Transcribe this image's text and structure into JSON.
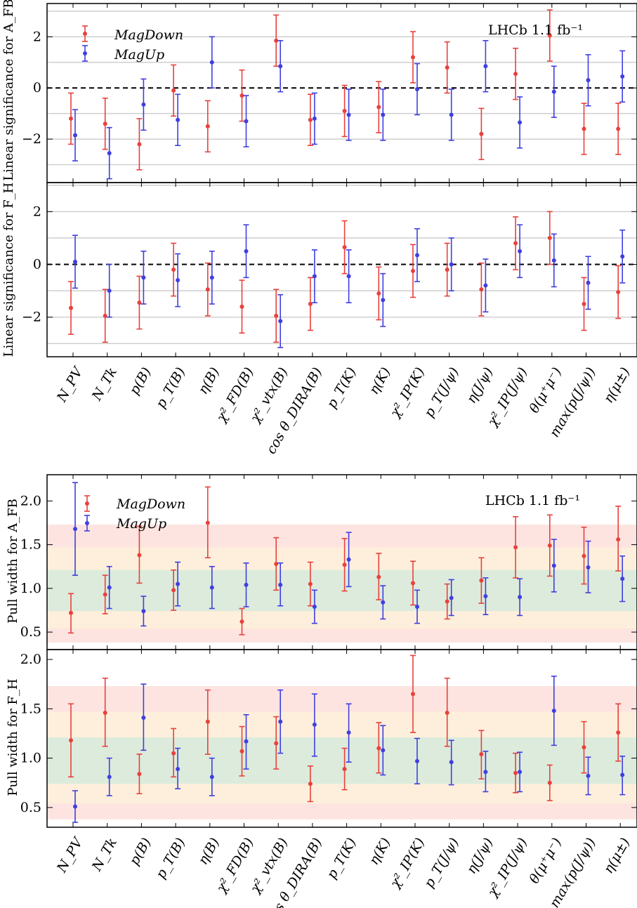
{
  "categories": [
    "N_PV",
    "N_Tk",
    "p(B)",
    "p_T(B)",
    "η(B)",
    "χ²_FD(B)",
    "χ²_vtx(B)",
    "cos θ_DIRA(B)",
    "p_T(K)",
    "η(K)",
    "χ²_IP(K)",
    "p_T(J/ψ)",
    "η(J/ψ)",
    "χ²_IP(J/ψ)",
    "θ(μ⁺μ⁻)",
    "max(p(J/ψ))",
    "η(μ±)"
  ],
  "colors": {
    "magdown": "#e8413c",
    "magup": "#3f3fe0",
    "green_band": "#dcebdc",
    "yellow_band": "#fdefdb",
    "red_band": "#fde4e1"
  },
  "chart_data": [
    {
      "type": "scatter",
      "ylabel": "Linear significance for A_FB",
      "annotation": "LHCb 1.1 fb⁻¹",
      "ylim": [
        -3.7,
        3.3
      ],
      "yticks": [
        -2,
        0,
        2
      ],
      "gridlines": [
        -3,
        -2,
        -1,
        1,
        2,
        3
      ],
      "reference_line": 0,
      "series": [
        {
          "name": "MagDown",
          "values": [
            -1.2,
            -1.4,
            -2.2,
            -0.1,
            -1.5,
            -0.3,
            1.85,
            -1.25,
            -0.9,
            -0.75,
            1.2,
            0.8,
            -1.8,
            0.55,
            2.05,
            -1.6,
            -1.6
          ],
          "errors": [
            1.0,
            1.0,
            1.0,
            1.0,
            1.0,
            1.0,
            1.0,
            1.0,
            1.0,
            1.0,
            1.0,
            1.0,
            1.0,
            1.0,
            1.0,
            1.0,
            1.0
          ]
        },
        {
          "name": "MagUp",
          "values": [
            -1.85,
            -2.55,
            -0.65,
            -1.25,
            1.0,
            -1.3,
            0.85,
            -1.2,
            -1.05,
            -1.05,
            -0.05,
            -1.05,
            0.85,
            -1.35,
            -0.15,
            0.3,
            0.45
          ],
          "errors": [
            1.0,
            1.0,
            1.0,
            1.0,
            1.0,
            1.0,
            1.0,
            1.0,
            1.0,
            1.0,
            1.0,
            1.0,
            1.0,
            1.0,
            1.0,
            1.0,
            1.0
          ]
        }
      ]
    },
    {
      "type": "scatter",
      "ylabel": "Linear significance for F_H",
      "ylim": [
        -3.5,
        3.1
      ],
      "yticks": [
        -2,
        0,
        2
      ],
      "gridlines": [
        -3,
        -2,
        -1,
        1,
        2,
        3
      ],
      "reference_line": 0,
      "series": [
        {
          "name": "MagDown",
          "values": [
            -1.65,
            -1.95,
            -1.45,
            -0.2,
            -0.95,
            -1.6,
            -1.95,
            -1.5,
            0.65,
            -1.1,
            -0.25,
            -0.2,
            -0.95,
            0.8,
            1.0,
            -1.5,
            -1.05
          ],
          "errors": [
            1.0,
            1.0,
            1.0,
            1.0,
            1.0,
            1.0,
            1.0,
            1.0,
            1.0,
            1.0,
            1.0,
            1.0,
            1.0,
            1.0,
            1.0,
            1.0,
            1.0
          ]
        },
        {
          "name": "MagUp",
          "values": [
            0.1,
            -1.0,
            -0.5,
            -0.6,
            -0.5,
            0.5,
            -2.15,
            -0.45,
            -0.45,
            -1.35,
            0.35,
            0.0,
            -0.8,
            0.5,
            0.15,
            -0.7,
            0.3
          ],
          "errors": [
            1.0,
            1.0,
            1.0,
            1.0,
            1.0,
            1.0,
            1.0,
            1.0,
            1.0,
            1.0,
            1.0,
            1.0,
            1.0,
            1.0,
            1.0,
            1.0,
            1.0
          ]
        }
      ]
    },
    {
      "type": "scatter",
      "ylabel": "Pull width for A_FB",
      "annotation": "LHCb  1.1 fb⁻¹",
      "ylim": [
        0.3,
        2.3
      ],
      "yticks": [
        0.5,
        1.0,
        1.5,
        2.0
      ],
      "bands": [
        [
          0.38,
          1.73
        ],
        [
          0.54,
          1.47
        ],
        [
          0.74,
          1.21
        ]
      ],
      "series": [
        {
          "name": "MagDown",
          "values": [
            0.72,
            0.93,
            1.38,
            0.98,
            1.75,
            0.62,
            1.28,
            1.05,
            1.27,
            1.13,
            1.06,
            0.85,
            1.09,
            1.47,
            1.49,
            1.37,
            1.56
          ],
          "lower": [
            0.49,
            0.71,
            1.06,
            0.75,
            1.35,
            0.47,
            0.98,
            0.8,
            0.97,
            0.87,
            0.81,
            0.65,
            0.83,
            1.12,
            1.14,
            1.05,
            1.2
          ],
          "upper": [
            0.94,
            1.15,
            1.71,
            1.21,
            2.16,
            0.77,
            1.58,
            1.3,
            1.57,
            1.4,
            1.31,
            1.05,
            1.35,
            1.82,
            1.84,
            1.7,
            1.94
          ]
        },
        {
          "name": "MagUp",
          "values": [
            1.68,
            1.01,
            0.74,
            1.05,
            1.01,
            1.04,
            1.04,
            0.79,
            1.33,
            0.84,
            0.79,
            0.89,
            0.91,
            0.9,
            1.26,
            1.24,
            1.11
          ],
          "lower": [
            1.15,
            0.77,
            0.57,
            0.8,
            0.77,
            0.79,
            0.8,
            0.6,
            1.02,
            0.65,
            0.6,
            0.69,
            0.7,
            0.69,
            0.96,
            0.95,
            0.85
          ],
          "upper": [
            2.21,
            1.25,
            0.91,
            1.3,
            1.25,
            1.29,
            1.29,
            0.98,
            1.64,
            1.03,
            0.98,
            1.1,
            1.12,
            1.11,
            1.56,
            1.54,
            1.37
          ]
        }
      ]
    },
    {
      "type": "scatter",
      "ylabel": "Pull width for F_H",
      "ylim": [
        0.3,
        2.1
      ],
      "yticks": [
        0.5,
        1.0,
        1.5,
        2.0
      ],
      "bands": [
        [
          0.38,
          1.73
        ],
        [
          0.54,
          1.47
        ],
        [
          0.74,
          1.21
        ]
      ],
      "series": [
        {
          "name": "MagDown",
          "values": [
            1.18,
            1.46,
            0.84,
            1.05,
            1.37,
            1.07,
            1.15,
            0.74,
            0.89,
            1.1,
            1.65,
            1.46,
            1.04,
            0.85,
            0.75,
            1.11,
            1.26
          ],
          "lower": [
            0.81,
            1.12,
            0.64,
            0.81,
            1.04,
            0.82,
            0.89,
            0.56,
            0.68,
            0.85,
            1.26,
            1.12,
            0.79,
            0.65,
            0.57,
            0.85,
            0.97
          ],
          "upper": [
            1.55,
            1.81,
            1.04,
            1.3,
            1.69,
            1.32,
            1.42,
            0.92,
            1.1,
            1.36,
            2.04,
            1.81,
            1.28,
            1.05,
            0.93,
            1.37,
            1.55
          ]
        },
        {
          "name": "MagUp",
          "values": [
            0.51,
            0.81,
            1.41,
            0.89,
            0.81,
            1.17,
            1.37,
            1.34,
            1.26,
            1.08,
            0.97,
            0.96,
            0.86,
            0.86,
            1.48,
            0.82,
            0.83
          ],
          "lower": [
            0.35,
            0.62,
            1.08,
            0.69,
            0.62,
            0.89,
            1.05,
            1.02,
            0.96,
            0.83,
            0.74,
            0.73,
            0.66,
            0.66,
            1.13,
            0.63,
            0.63
          ],
          "upper": [
            0.67,
            1.0,
            1.75,
            1.1,
            1.0,
            1.44,
            1.69,
            1.65,
            1.55,
            1.33,
            1.2,
            1.18,
            1.07,
            1.06,
            1.83,
            1.01,
            1.02
          ]
        }
      ]
    }
  ],
  "legend": {
    "magdown_label": "MagDown",
    "magup_label": "MagUp"
  },
  "annotations": {
    "top": "LHCb 1.1 fb⁻¹",
    "bottom": "LHCb  1.1 fb⁻¹"
  }
}
